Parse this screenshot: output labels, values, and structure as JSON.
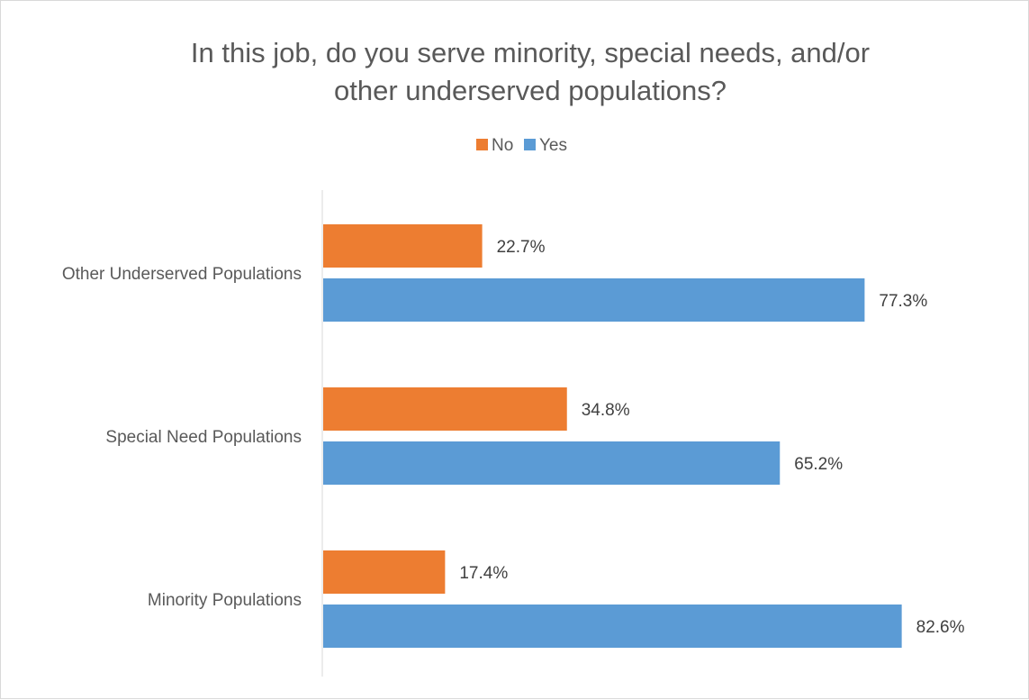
{
  "chart_data": {
    "type": "bar",
    "orientation": "horizontal",
    "title": "In this job, do you serve minority, special needs, and/or other underserved populations?",
    "title_lines": [
      "In this job, do you serve minority, special needs, and/or",
      "other underserved populations?"
    ],
    "categories": [
      "Other Underserved Populations",
      "Special Need Populations",
      "Minority Populations"
    ],
    "series": [
      {
        "name": "No",
        "color": "#ed7d31",
        "values": [
          22.7,
          34.8,
          17.4
        ],
        "labels": [
          "22.7%",
          "34.8%",
          "17.4%"
        ]
      },
      {
        "name": "Yes",
        "color": "#5b9bd5",
        "values": [
          77.3,
          65.2,
          82.6
        ],
        "labels": [
          "77.3%",
          "65.2%",
          "82.6%"
        ]
      }
    ],
    "xlim": [
      0,
      100
    ],
    "grid": false,
    "legend_position": "top"
  }
}
